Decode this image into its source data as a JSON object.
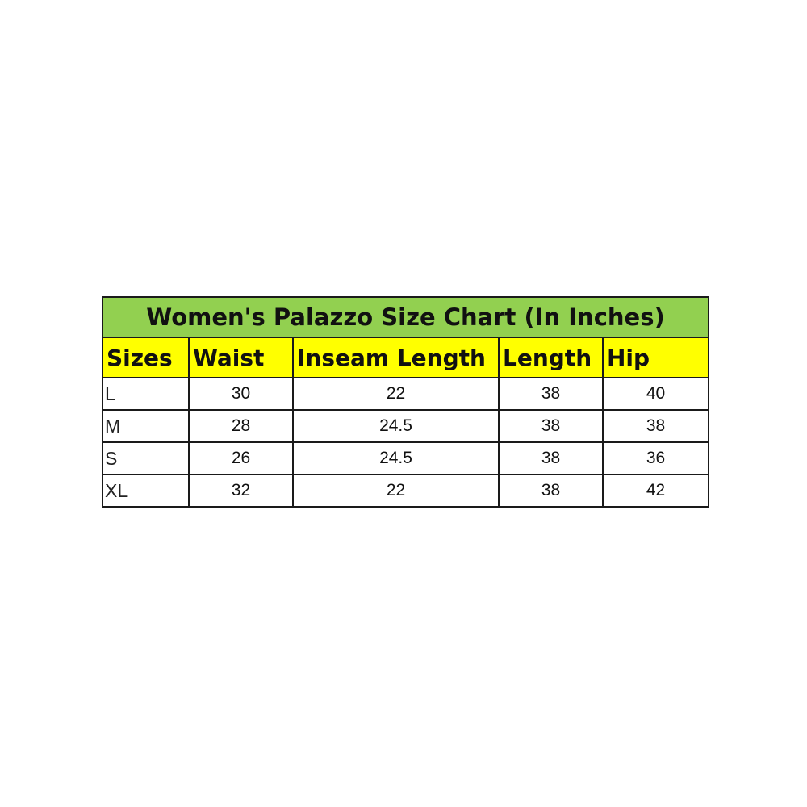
{
  "title": "Women's Palazzo Size Chart (In Inches)",
  "colors": {
    "title_bg": "#92d050",
    "header_bg": "#ffff00"
  },
  "headers": [
    "Sizes",
    "Waist",
    "Inseam Length",
    "Length",
    "Hip"
  ],
  "rows": [
    [
      "L",
      "30",
      "22",
      "38",
      "40"
    ],
    [
      "M",
      "28",
      "24.5",
      "38",
      "38"
    ],
    [
      "S",
      "26",
      "24.5",
      "38",
      "36"
    ],
    [
      "XL",
      "32",
      "22",
      "38",
      "42"
    ]
  ]
}
